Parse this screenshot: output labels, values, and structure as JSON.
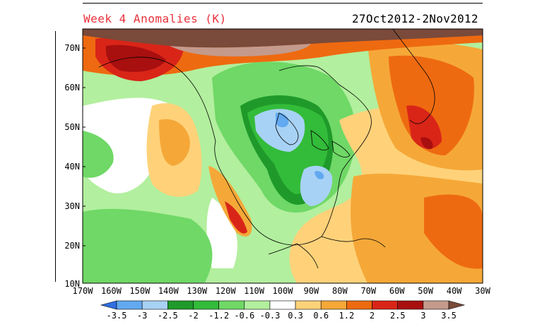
{
  "title": {
    "left": "Week 4 Anomalies (K)",
    "right": "27Oct2012-2Nov2012"
  },
  "axes": {
    "lat_labels": [
      "70N",
      "60N",
      "50N",
      "40N",
      "30N",
      "20N",
      "10N"
    ],
    "lon_labels": [
      "170W",
      "160W",
      "150W",
      "140W",
      "130W",
      "120W",
      "110W",
      "100W",
      "90W",
      "80W",
      "70W",
      "60W",
      "50W",
      "40W",
      "30W"
    ]
  },
  "colorbar": {
    "labels": [
      "-3.5",
      "-3",
      "-2.5",
      "-2",
      "-1.2",
      "-0.6",
      "-0.3",
      "0.3",
      "0.6",
      "1.2",
      "2",
      "2.5",
      "3",
      "3.5"
    ],
    "colors": [
      "#2f6fe0",
      "#62a9f0",
      "#a8d2f5",
      "#1f9a2a",
      "#33bb3a",
      "#6fd866",
      "#b2ef9e",
      "#ffffff",
      "#ffd27a",
      "#f5a838",
      "#ee6a10",
      "#d92518",
      "#a80f0f",
      "#c49a8c",
      "#7a4a3a"
    ]
  },
  "map": {
    "land_outline_color": "#000000",
    "warm_regions": [
      "Alaska",
      "Western US Pacific coast",
      "Mexico Pacific coast",
      "Western Atlantic",
      "Labrador Sea",
      "Greenland"
    ],
    "cool_regions": [
      "Central Canada",
      "Great Lakes",
      "Southeastern US",
      "North Pacific"
    ]
  }
}
